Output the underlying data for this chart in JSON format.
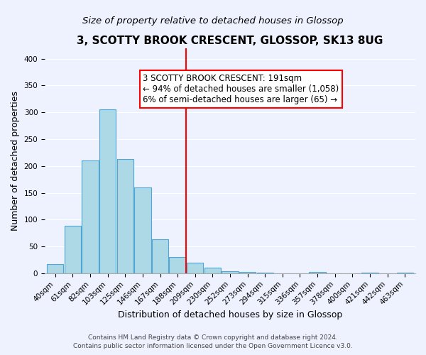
{
  "title": "3, SCOTTY BROOK CRESCENT, GLOSSOP, SK13 8UG",
  "subtitle": "Size of property relative to detached houses in Glossop",
  "xlabel": "Distribution of detached houses by size in Glossop",
  "ylabel": "Number of detached properties",
  "bar_labels": [
    "40sqm",
    "61sqm",
    "82sqm",
    "103sqm",
    "125sqm",
    "146sqm",
    "167sqm",
    "188sqm",
    "209sqm",
    "230sqm",
    "252sqm",
    "273sqm",
    "294sqm",
    "315sqm",
    "336sqm",
    "357sqm",
    "378sqm",
    "400sqm",
    "421sqm",
    "442sqm",
    "463sqm"
  ],
  "bar_heights": [
    17,
    88,
    210,
    305,
    213,
    160,
    63,
    30,
    20,
    11,
    4,
    2,
    1,
    0,
    0,
    2,
    0,
    0,
    1,
    0,
    1
  ],
  "bar_color": "#add8e6",
  "bar_edge_color": "#4da6d4",
  "vline_x": 7.5,
  "vline_color": "red",
  "annotation_title": "3 SCOTTY BROOK CRESCENT: 191sqm",
  "annotation_line1": "← 94% of detached houses are smaller (1,058)",
  "annotation_line2": "6% of semi-detached houses are larger (65) →",
  "ylim": [
    0,
    420
  ],
  "yticks": [
    0,
    50,
    100,
    150,
    200,
    250,
    300,
    350,
    400
  ],
  "footer_line1": "Contains HM Land Registry data © Crown copyright and database right 2024.",
  "footer_line2": "Contains public sector information licensed under the Open Government Licence v3.0.",
  "bg_color": "#eef2ff",
  "title_fontsize": 11,
  "subtitle_fontsize": 9.5,
  "xlabel_fontsize": 9,
  "ylabel_fontsize": 9,
  "tick_fontsize": 7.5,
  "annotation_fontsize": 8.5,
  "footer_fontsize": 6.5
}
